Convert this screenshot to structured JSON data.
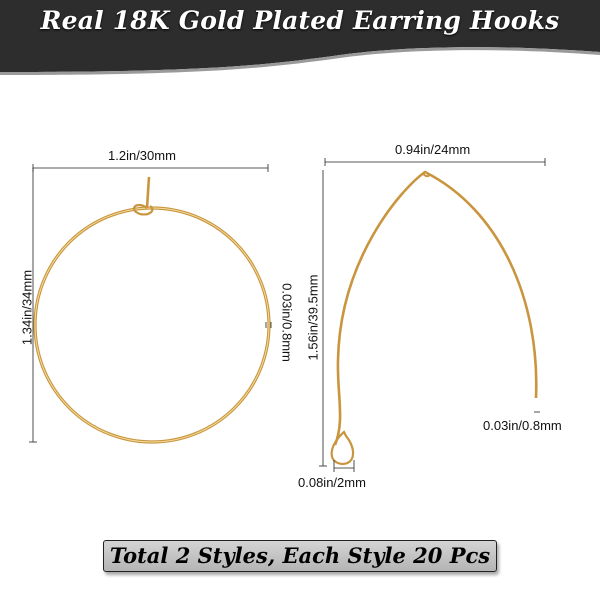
{
  "header": {
    "title": "Real 18K Gold Plated Earring Hooks"
  },
  "colors": {
    "header_bg": "#2d2d2d",
    "gold": "#d4a24c",
    "banner_bg": "#c4c4c4"
  },
  "hoop_style": {
    "width_label": "1.2in/30mm",
    "height_label": "1.34in/34mm",
    "wire_label": "0.03in/0.8mm"
  },
  "marquise_style": {
    "width_label": "0.94in/24mm",
    "height_label": "1.56in/39.5mm",
    "wire_label": "0.03in/0.8mm",
    "loop_label": "0.08in/2mm"
  },
  "footer": {
    "banner_text": "Total 2 Styles, Each Style 20 Pcs"
  }
}
